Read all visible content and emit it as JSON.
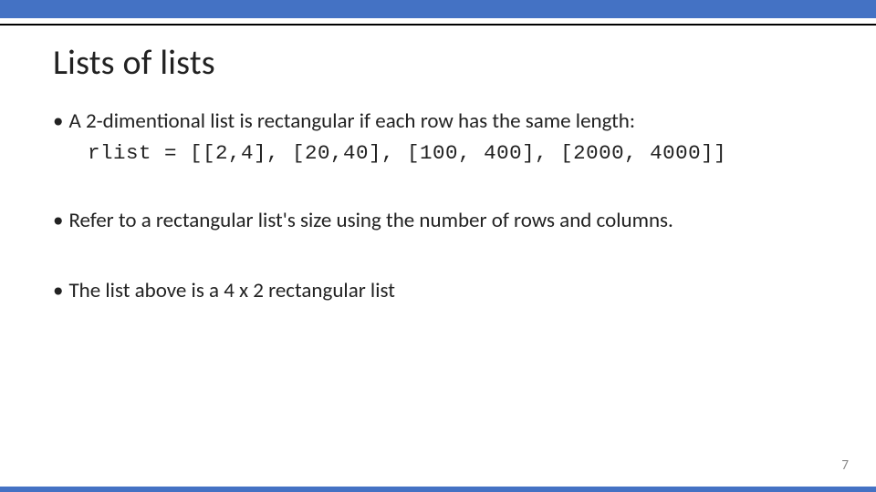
{
  "colors": {
    "accent": "#4472c4",
    "text": "#222222",
    "page_number": "#8a8a8a",
    "background": "#ffffff",
    "divider": "#000000"
  },
  "title": "Lists of lists",
  "bullets": [
    {
      "text": "A 2-dimentional list is rectangular if each row has the same length:",
      "code": "rlist = [[2,4], [20,40], [100, 400], [2000, 4000]]"
    },
    {
      "text": "Refer to a rectangular list's size using the number of rows and columns."
    },
    {
      "text": "The list above is a 4 x 2 rectangular list"
    }
  ],
  "page_number": "7"
}
